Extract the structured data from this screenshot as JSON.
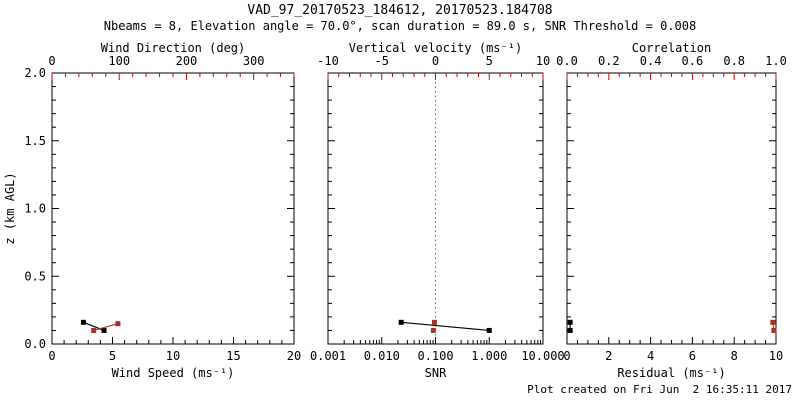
{
  "chart_data": {
    "type": "scatter",
    "title": "VAD_97_20170523_184612, 20170523.184708",
    "subtitle": "Nbeams = 8, Elevation angle = 70.0°, scan duration = 89.0 s, SNR Threshold = 0.008",
    "ylabel": "z (km AGL)",
    "ylim": [
      0,
      2.0
    ],
    "yticks": {
      "values": [
        0,
        0.5,
        1.0,
        1.5,
        2.0
      ],
      "labels": [
        "0.0",
        "0.5",
        "1.0",
        "1.5",
        "2.0"
      ],
      "minor_step": 0.1
    },
    "grid": false,
    "panels": [
      {
        "name": "wind",
        "show_y_labels": true,
        "bottom_axis": {
          "label": "Wind Speed (ms⁻¹)",
          "scale": "linear",
          "range": [
            0,
            20
          ],
          "ticks": [
            0,
            5,
            10,
            15,
            20
          ],
          "tick_labels": [
            "0",
            "5",
            "10",
            "15",
            "20"
          ],
          "minor_step": 1,
          "color": "#000000"
        },
        "top_axis": {
          "label": "Wind Direction (deg)",
          "scale": "linear",
          "range": [
            0,
            360
          ],
          "ticks": [
            0,
            100,
            200,
            300
          ],
          "tick_labels": [
            "0",
            "100",
            "200",
            "300"
          ],
          "minor_step": 20,
          "color": "#dd0000"
        },
        "series": [
          {
            "name": "wind-speed",
            "axis": "bottom",
            "marker_color": "#000000",
            "line_color": "#000000",
            "line": true,
            "points": [
              [
                2.6,
                0.16
              ],
              [
                4.3,
                0.1
              ]
            ]
          },
          {
            "name": "wind-direction",
            "axis": "top",
            "marker_color": "#a63324",
            "line_color": "#c0392b",
            "line": true,
            "points": [
              [
                62,
                0.1
              ],
              [
                98,
                0.15
              ]
            ]
          }
        ]
      },
      {
        "name": "snr",
        "show_y_labels": false,
        "bottom_axis": {
          "label": "SNR",
          "scale": "log",
          "range": [
            0.001,
            10
          ],
          "ticks": [
            0.001,
            0.01,
            0.1,
            1,
            10
          ],
          "tick_labels": [
            "0.001",
            "0.010",
            "0.100",
            "1.000",
            "10.000"
          ],
          "color": "#000000"
        },
        "top_axis": {
          "label": "Vertical velocity (ms⁻¹)",
          "scale": "linear",
          "range": [
            -10,
            10
          ],
          "ticks": [
            -10,
            -5,
            0,
            5,
            10
          ],
          "tick_labels": [
            "-10",
            "-5",
            "0",
            "5",
            "10"
          ],
          "minor_step": 1,
          "color": "#dd0000"
        },
        "ref_line": {
          "axis": "top",
          "value": 0,
          "color": "#dd3333"
        },
        "series": [
          {
            "name": "snr-profile",
            "axis": "bottom",
            "marker_color": "#000000",
            "line_color": "#000000",
            "line": true,
            "points": [
              [
                0.023,
                0.16
              ],
              [
                1.0,
                0.1
              ]
            ]
          },
          {
            "name": "vertical-velocity",
            "axis": "top",
            "marker_color": "#a63324",
            "line_color": "#c0392b",
            "line": false,
            "points": [
              [
                -0.1,
                0.16
              ],
              [
                -0.2,
                0.1
              ]
            ]
          }
        ]
      },
      {
        "name": "residual",
        "show_y_labels": false,
        "bottom_axis": {
          "label": "Residual (ms⁻¹)",
          "scale": "linear",
          "range": [
            0,
            10
          ],
          "ticks": [
            0,
            2,
            4,
            6,
            8,
            10
          ],
          "tick_labels": [
            "0",
            "2",
            "4",
            "6",
            "8",
            "10"
          ],
          "minor_step": 0.5,
          "color": "#000000"
        },
        "top_axis": {
          "label": "Correlation",
          "scale": "linear",
          "range": [
            0,
            1
          ],
          "ticks": [
            0,
            0.2,
            0.4,
            0.6,
            0.8,
            1.0
          ],
          "tick_labels": [
            "0.0",
            "0.2",
            "0.4",
            "0.6",
            "0.8",
            "1.0"
          ],
          "minor_step": 0.05,
          "color": "#dd0000"
        },
        "series": [
          {
            "name": "residual-profile",
            "axis": "bottom",
            "marker_color": "#000000",
            "line_color": "#000000",
            "line": true,
            "points": [
              [
                0.15,
                0.16
              ],
              [
                0.15,
                0.1
              ]
            ]
          },
          {
            "name": "correlation",
            "axis": "top",
            "marker_color": "#a63324",
            "line_color": "#c0392b",
            "line": true,
            "points": [
              [
                0.985,
                0.16
              ],
              [
                0.99,
                0.1
              ]
            ]
          }
        ]
      }
    ]
  },
  "footer": {
    "created": "Plot created on Fri Jun  2 16:35:11 2017"
  },
  "colors": {
    "secondary_axis": "#dd0000",
    "primary_axis": "#000000",
    "red_marker": "#a63324",
    "red_line": "#c0392b",
    "zero_ref_line": "#dd3333"
  }
}
